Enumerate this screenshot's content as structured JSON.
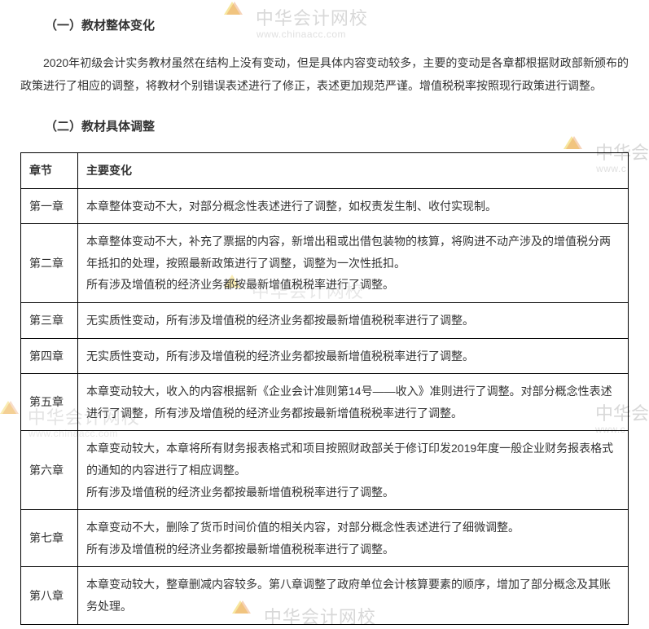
{
  "section1": {
    "title": "（一）教材整体变化",
    "paragraph": "2020年初级会计实务教材虽然在结构上没有变动，但是具体内容变动较多，主要的变动是各章都根据财政部新颁布的政策进行了相应的调整，将教材个别错误表述进行了修正，表述更加规范严谨。增值税税率按照现行政策进行调整。"
  },
  "section2": {
    "title": "（二）教材具体调整"
  },
  "table": {
    "headers": {
      "col1": "章节",
      "col2": "主要变化"
    },
    "rows": [
      {
        "chapter": "第一章",
        "change": "本章整体变动不大，对部分概念性表述进行了调整，如权责发生制、收付实现制。"
      },
      {
        "chapter": "第二章",
        "change": "本章整体变动不大，补充了票据的内容，新增出租或出借包装物的核算，将购进不动产涉及的增值税分两年抵扣的处理，按照最新政策进行了调整，调整为一次性抵扣。\n所有涉及增值税的经济业务都按最新增值税税率进行了调整。"
      },
      {
        "chapter": "第三章",
        "change": "无实质性变动，所有涉及增值税的经济业务都按最新增值税税率进行了调整。"
      },
      {
        "chapter": "第四章",
        "change": "无实质性变动，所有涉及增值税的经济业务都按最新增值税税率进行了调整。"
      },
      {
        "chapter": "第五章",
        "change": "本章变动较大，收入的内容根据新《企业会计准则第14号——收入》准则进行了调整。对部分概念性表述进行了调整，所有涉及增值税的经济业务都按最新增值税税率进行了调整。"
      },
      {
        "chapter": "第六章",
        "change": "本章变动较大，本章将所有财务报表格式和项目按照财政部关于修订印发2019年度一般企业财务报表格式的通知的内容进行了相应调整。\n所有涉及增值税的经济业务都按最新增值税税率进行了调整。"
      },
      {
        "chapter": "第七章",
        "change": "本章变动不大，删除了货币时间价值的相关内容，对部分概念性表述进行了细微调整。\n所有涉及增值税的经济业务都按最新增值税税率进行了调整。"
      },
      {
        "chapter": "第八章",
        "change": "本章变动较大，整章删减内容较多。第八章调整了政府单位会计核算要素的顺序，增加了部分概念及其账务处理。"
      }
    ]
  },
  "watermark": {
    "brand_cn": "中华会计网校",
    "brand_en": "www.chinaacc.com",
    "brand_cn_partial": "中华会",
    "brand_en_partial": "www.c"
  },
  "styles": {
    "text_color": "#333333",
    "border_color": "#000000",
    "background_color": "#ffffff",
    "watermark_text_color": "#d8d8d8",
    "watermark_sub_color": "#e0e0e0",
    "font_size_body": 14,
    "font_size_heading": 15,
    "line_height": 1.9,
    "col_chapter_width": 70
  }
}
